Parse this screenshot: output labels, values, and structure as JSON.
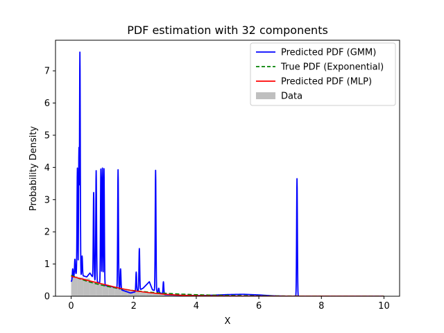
{
  "chart_data": {
    "type": "line",
    "title": "PDF estimation with 32 components",
    "xlabel": "X",
    "ylabel": "Probability Density",
    "xlim": [
      -0.5,
      10.5
    ],
    "ylim": [
      0,
      7.95
    ],
    "xticks": [
      0,
      2,
      4,
      6,
      8,
      10
    ],
    "yticks": [
      0,
      1,
      2,
      3,
      4,
      5,
      6,
      7
    ],
    "grid": false,
    "legend_position": "top-right",
    "legend": [
      {
        "label": "Predicted PDF (GMM)",
        "color": "#0000ff",
        "style": "solid"
      },
      {
        "label": "True PDF (Exponential)",
        "color": "#008000",
        "style": "dashed"
      },
      {
        "label": "Predicted PDF (MLP)",
        "color": "#ff0000",
        "style": "solid"
      },
      {
        "label": "Data",
        "color": "#bfbfbf",
        "style": "patch"
      }
    ],
    "series": [
      {
        "name": "Predicted PDF (GMM)",
        "color": "#0000ff",
        "baseline": [
          [
            0.0,
            0.45
          ],
          [
            0.15,
            0.7
          ],
          [
            0.5,
            0.6
          ],
          [
            0.6,
            0.72
          ],
          [
            0.75,
            0.5
          ],
          [
            1.0,
            0.35
          ],
          [
            1.3,
            0.3
          ],
          [
            1.6,
            0.2
          ],
          [
            1.9,
            0.1
          ],
          [
            2.1,
            0.15
          ],
          [
            2.3,
            0.25
          ],
          [
            2.5,
            0.45
          ],
          [
            2.6,
            0.2
          ],
          [
            2.8,
            0.12
          ],
          [
            3.0,
            0.05
          ],
          [
            3.5,
            0.03
          ],
          [
            4.2,
            0.02
          ],
          [
            5.0,
            0.05
          ],
          [
            5.5,
            0.06
          ],
          [
            6.0,
            0.04
          ],
          [
            6.5,
            0.01
          ],
          [
            7.0,
            0.0
          ],
          [
            10.0,
            0.0
          ]
        ],
        "peaks": [
          [
            0.05,
            0.85
          ],
          [
            0.12,
            1.15
          ],
          [
            0.2,
            3.98
          ],
          [
            0.25,
            4.62
          ],
          [
            0.28,
            7.58
          ],
          [
            0.35,
            1.25
          ],
          [
            0.72,
            3.22
          ],
          [
            0.8,
            3.9
          ],
          [
            0.95,
            3.95
          ],
          [
            1.0,
            3.98
          ],
          [
            1.05,
            3.96
          ],
          [
            1.5,
            3.93
          ],
          [
            1.58,
            0.85
          ],
          [
            2.08,
            0.75
          ],
          [
            2.18,
            1.48
          ],
          [
            2.7,
            3.91
          ],
          [
            2.8,
            0.25
          ],
          [
            2.95,
            0.45
          ],
          [
            7.22,
            3.65
          ]
        ]
      },
      {
        "name": "True PDF (Exponential)",
        "color": "#008000",
        "function": "0.65*exp(-0.65*x)"
      },
      {
        "name": "Predicted PDF (MLP)",
        "color": "#ff0000",
        "points": [
          [
            0.0,
            0.62
          ],
          [
            0.25,
            0.56
          ],
          [
            0.5,
            0.5
          ],
          [
            0.75,
            0.44
          ],
          [
            1.0,
            0.38
          ],
          [
            1.25,
            0.32
          ],
          [
            1.5,
            0.26
          ],
          [
            1.75,
            0.21
          ],
          [
            2.0,
            0.17
          ],
          [
            2.5,
            0.11
          ],
          [
            3.0,
            0.06
          ],
          [
            3.5,
            0.03
          ],
          [
            4.0,
            0.015
          ],
          [
            5.0,
            0.005
          ],
          [
            6.0,
            0.002
          ],
          [
            10.0,
            0.0
          ]
        ]
      },
      {
        "name": "Data",
        "color": "#bfbfbf",
        "bins": [
          [
            0.0,
            0.2,
            0.62
          ],
          [
            0.2,
            0.4,
            0.58
          ],
          [
            0.4,
            0.6,
            0.55
          ],
          [
            0.6,
            0.8,
            0.45
          ],
          [
            0.8,
            1.0,
            0.4
          ],
          [
            1.0,
            1.2,
            0.36
          ],
          [
            1.2,
            1.4,
            0.3
          ],
          [
            1.4,
            1.6,
            0.25
          ],
          [
            1.6,
            1.8,
            0.22
          ],
          [
            1.8,
            2.0,
            0.18
          ],
          [
            2.0,
            2.2,
            0.15
          ],
          [
            2.2,
            2.4,
            0.12
          ],
          [
            2.4,
            2.6,
            0.1
          ],
          [
            2.6,
            2.8,
            0.08
          ],
          [
            2.8,
            3.0,
            0.06
          ],
          [
            3.0,
            3.2,
            0.05
          ],
          [
            3.2,
            3.4,
            0.04
          ],
          [
            3.4,
            3.6,
            0.03
          ],
          [
            3.6,
            3.8,
            0.025
          ],
          [
            3.8,
            4.0,
            0.02
          ]
        ]
      }
    ]
  }
}
